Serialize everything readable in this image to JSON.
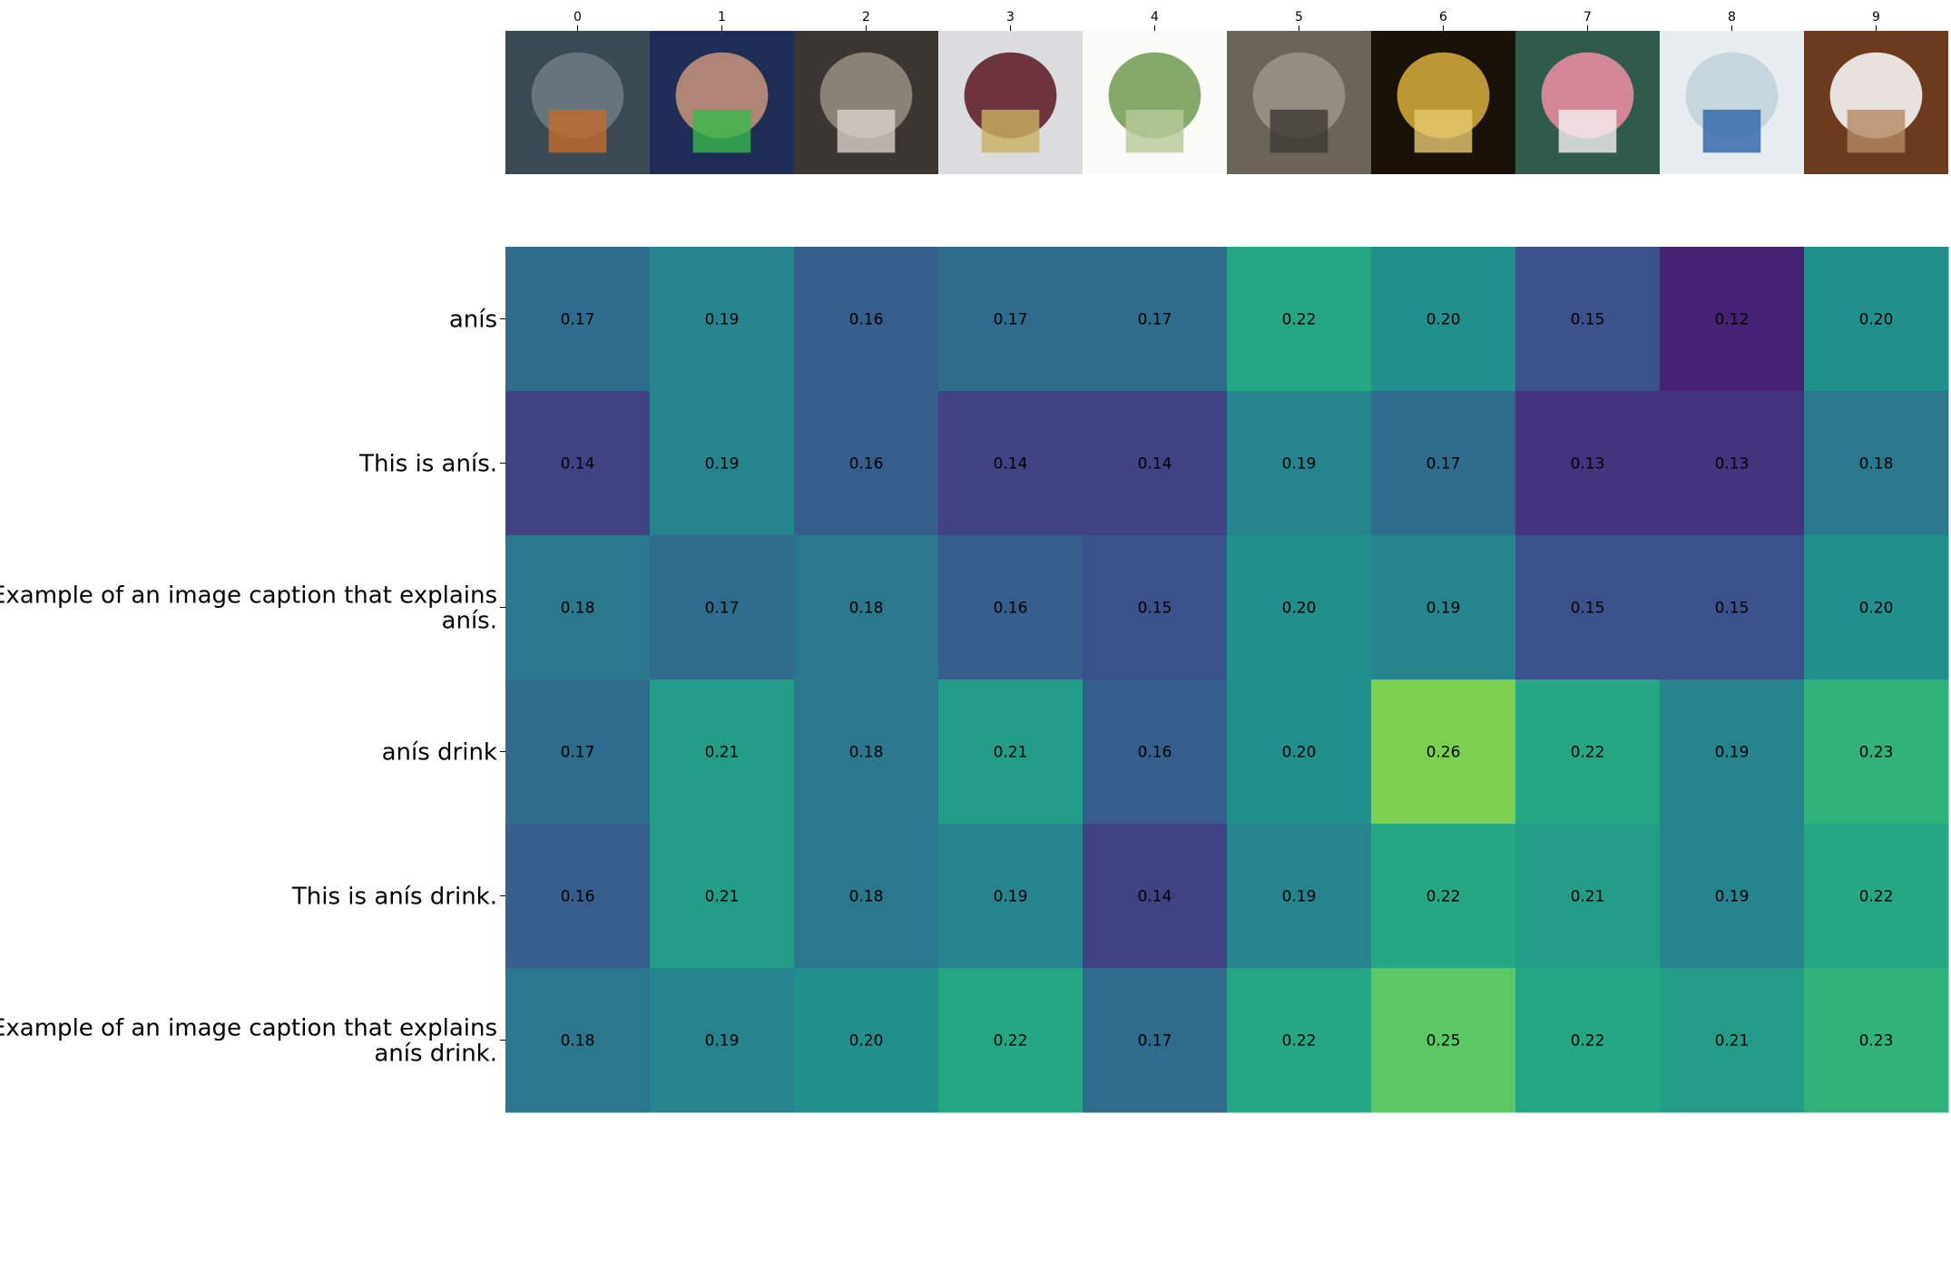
{
  "chart_data": {
    "type": "heatmap",
    "title": "",
    "xlabel": "",
    "ylabel": "",
    "columns": [
      "0",
      "1",
      "2",
      "3",
      "4",
      "5",
      "6",
      "7",
      "8",
      "9"
    ],
    "column_images": [
      "pot-of-boiling-liquid-over-fire",
      "man-drinking-red-drink-from-glass",
      "person-drinking-black-and-white-photo",
      "two-glasses-dark-and-light-liquid",
      "anise-plant-botanical-illustration",
      "barrels-in-wine-cellar",
      "hand-holding-yellow-cocktail",
      "pink-drink-in-plastic-cup",
      "glass-bottle-with-blue-label",
      "coffee-cup-on-saucer"
    ],
    "rows": [
      [
        "anís"
      ],
      [
        "This is anís."
      ],
      [
        "Example of an image caption that explains",
        "anís."
      ],
      [
        "anís drink"
      ],
      [
        "This is anís drink."
      ],
      [
        "Example of an image caption that explains",
        "anís drink."
      ]
    ],
    "values": [
      [
        0.17,
        0.19,
        0.16,
        0.17,
        0.17,
        0.22,
        0.2,
        0.15,
        0.12,
        0.2
      ],
      [
        0.14,
        0.19,
        0.16,
        0.14,
        0.14,
        0.19,
        0.17,
        0.13,
        0.13,
        0.18
      ],
      [
        0.18,
        0.17,
        0.18,
        0.16,
        0.15,
        0.2,
        0.19,
        0.15,
        0.15,
        0.2
      ],
      [
        0.17,
        0.21,
        0.18,
        0.21,
        0.16,
        0.2,
        0.26,
        0.22,
        0.19,
        0.23
      ],
      [
        0.16,
        0.21,
        0.18,
        0.19,
        0.14,
        0.19,
        0.22,
        0.21,
        0.19,
        0.22
      ],
      [
        0.18,
        0.19,
        0.2,
        0.22,
        0.17,
        0.22,
        0.25,
        0.22,
        0.21,
        0.23
      ]
    ],
    "colormap": "viridis",
    "color_range": [
      0.1,
      0.3
    ]
  }
}
